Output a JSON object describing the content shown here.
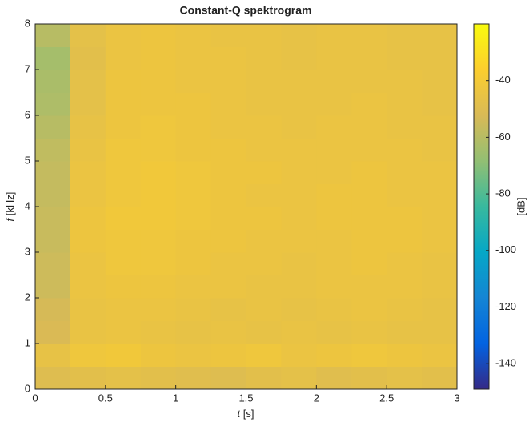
{
  "chart_data": {
    "type": "heatmap",
    "title": "Constant-Q spektrogram",
    "x_label": {
      "var": "t",
      "unit": "[s]"
    },
    "y_label": {
      "var": "f",
      "unit": "[kHz]"
    },
    "colorbar_label": "[dB]",
    "colormap": "parula",
    "x_edges": [
      0,
      0.25,
      0.5,
      0.75,
      1,
      1.25,
      1.5,
      1.75,
      2,
      2.25,
      2.5,
      2.75,
      3
    ],
    "y_edges": [
      0,
      0.5,
      1,
      1.5,
      2,
      2.5,
      3,
      3.5,
      4,
      4.5,
      5,
      5.5,
      6,
      6.5,
      7,
      7.5,
      8
    ],
    "z": [
      [
        -50,
        -48,
        -47,
        -48,
        -49,
        -50,
        -48,
        -47,
        -49,
        -48,
        -47,
        -48
      ],
      [
        -46,
        -42,
        -41,
        -43,
        -44,
        -43,
        -42,
        -44,
        -43,
        -42,
        -43,
        -44
      ],
      [
        -52,
        -45,
        -44,
        -45,
        -46,
        -45,
        -46,
        -45,
        -46,
        -45,
        -46,
        -46
      ],
      [
        -53,
        -45,
        -44,
        -44,
        -45,
        -46,
        -45,
        -46,
        -45,
        -44,
        -45,
        -46
      ],
      [
        -55,
        -44,
        -43,
        -43,
        -44,
        -44,
        -45,
        -45,
        -44,
        -44,
        -44,
        -45
      ],
      [
        -55,
        -44,
        -42,
        -42,
        -43,
        -44,
        -44,
        -45,
        -44,
        -43,
        -44,
        -45
      ],
      [
        -56,
        -43,
        -42,
        -42,
        -43,
        -43,
        -44,
        -44,
        -44,
        -43,
        -43,
        -44
      ],
      [
        -56,
        -43,
        -41,
        -41,
        -42,
        -43,
        -43,
        -44,
        -43,
        -43,
        -43,
        -44
      ],
      [
        -57,
        -44,
        -42,
        -41,
        -42,
        -43,
        -44,
        -44,
        -43,
        -43,
        -44,
        -44
      ],
      [
        -57,
        -44,
        -42,
        -41,
        -42,
        -43,
        -43,
        -44,
        -44,
        -43,
        -44,
        -44
      ],
      [
        -58,
        -45,
        -42,
        -42,
        -43,
        -43,
        -44,
        -44,
        -44,
        -44,
        -44,
        -45
      ],
      [
        -60,
        -46,
        -43,
        -42,
        -43,
        -44,
        -44,
        -45,
        -44,
        -44,
        -45,
        -45
      ],
      [
        -62,
        -47,
        -43,
        -43,
        -43,
        -44,
        -45,
        -45,
        -45,
        -44,
        -45,
        -46
      ],
      [
        -63,
        -47,
        -43,
        -43,
        -44,
        -44,
        -45,
        -45,
        -45,
        -45,
        -45,
        -46
      ],
      [
        -64,
        -48,
        -44,
        -43,
        -44,
        -44,
        -45,
        -46,
        -45,
        -45,
        -46,
        -46
      ],
      [
        -60,
        -47,
        -44,
        -43,
        -44,
        -45,
        -45,
        -46,
        -45,
        -45,
        -46,
        -46
      ]
    ],
    "xlim": [
      0,
      3
    ],
    "xticks": [
      0,
      0.5,
      1,
      1.5,
      2,
      2.5,
      3
    ],
    "ylim": [
      0,
      8
    ],
    "yticks": [
      0,
      1,
      2,
      3,
      4,
      5,
      6,
      7,
      8
    ],
    "clim": [
      -149,
      -20
    ],
    "cticks": [
      -140,
      -120,
      -100,
      -80,
      -60,
      -40
    ]
  }
}
